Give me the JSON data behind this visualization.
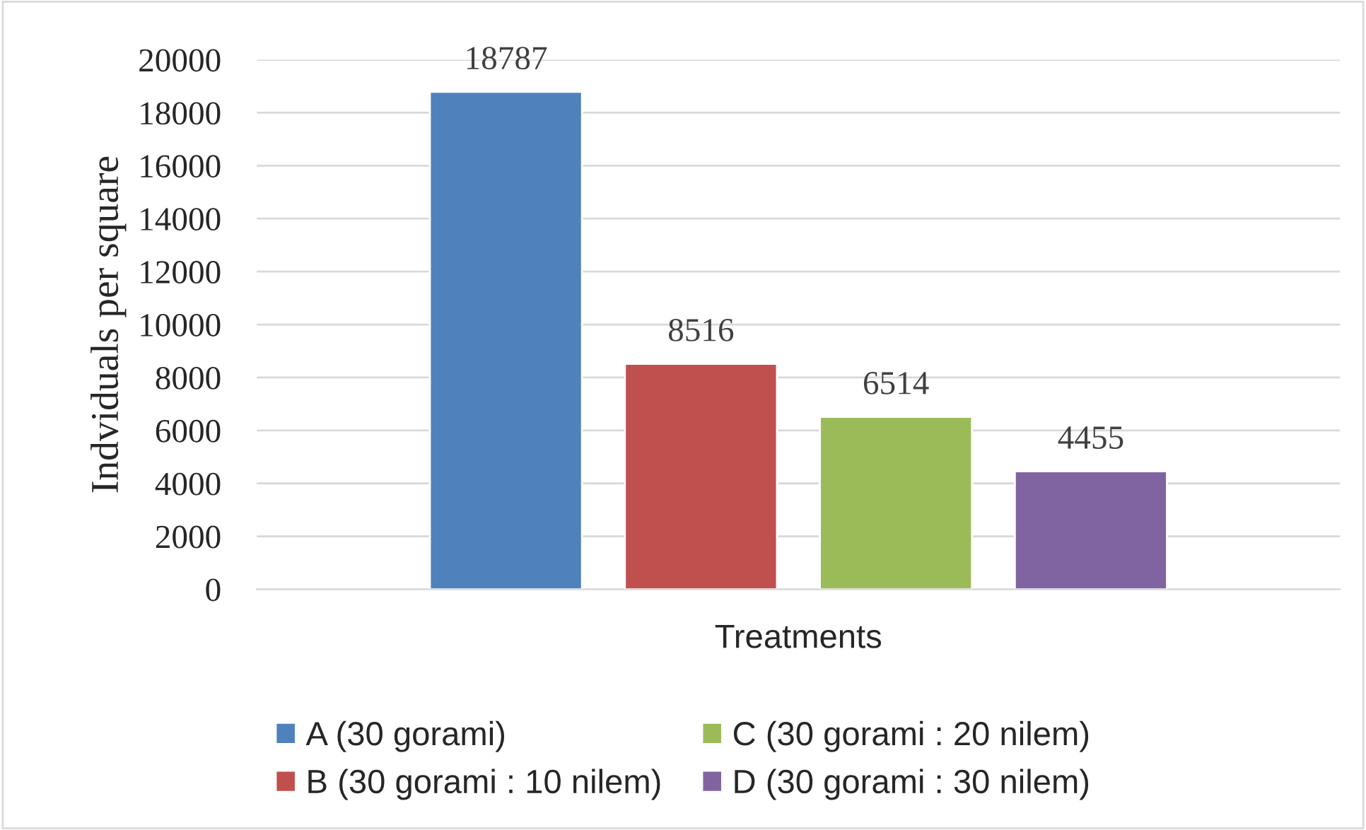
{
  "chart_data": {
    "type": "bar",
    "xlabel": "Treatments",
    "ylabel": "Indviduals per square",
    "categories": [
      null
    ],
    "series": [
      {
        "name": "A (30 gorami)",
        "color": "#4f81bd",
        "values": [
          18787
        ]
      },
      {
        "name": "B (30 gorami : 10 nilem)",
        "color": "#c0504d",
        "values": [
          8516
        ]
      },
      {
        "name": "C (30 gorami : 20 nilem)",
        "color": "#9bbb59",
        "values": [
          6514
        ]
      },
      {
        "name": "D (30 gorami : 30 nilem)",
        "color": "#8064a2",
        "values": [
          4455
        ]
      }
    ],
    "ylim": [
      0,
      20000
    ],
    "yticks": [
      0,
      2000,
      4000,
      6000,
      8000,
      10000,
      12000,
      14000,
      16000,
      18000,
      20000
    ],
    "grid": "y",
    "legend": "bottom",
    "data_labels": true
  }
}
